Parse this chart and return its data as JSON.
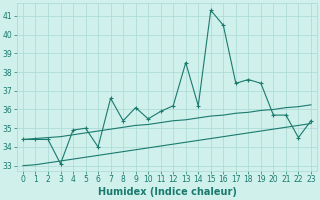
{
  "xlabel": "Humidex (Indice chaleur)",
  "x": [
    0,
    1,
    2,
    3,
    4,
    5,
    6,
    7,
    8,
    9,
    10,
    11,
    12,
    13,
    14,
    15,
    16,
    17,
    18,
    19,
    20,
    21,
    22,
    23
  ],
  "y_main": [
    34.4,
    34.4,
    34.4,
    33.1,
    34.9,
    35.0,
    34.0,
    36.6,
    35.4,
    36.1,
    35.5,
    35.9,
    36.2,
    38.5,
    36.2,
    41.3,
    40.5,
    37.4,
    37.6,
    37.4,
    35.7,
    35.7,
    34.5,
    35.4
  ],
  "y_upper": [
    34.4,
    34.45,
    34.5,
    34.55,
    34.65,
    34.75,
    34.85,
    34.95,
    35.05,
    35.15,
    35.2,
    35.3,
    35.4,
    35.45,
    35.55,
    35.65,
    35.7,
    35.8,
    35.85,
    35.95,
    36.0,
    36.1,
    36.15,
    36.25
  ],
  "y_lower": [
    33.0,
    33.05,
    33.15,
    33.25,
    33.35,
    33.45,
    33.55,
    33.65,
    33.75,
    33.85,
    33.95,
    34.05,
    34.15,
    34.25,
    34.35,
    34.45,
    34.55,
    34.65,
    34.75,
    34.85,
    34.95,
    35.05,
    35.15,
    35.25
  ],
  "line_color": "#1a7a6e",
  "bg_color": "#cff0eb",
  "grid_color": "#aad9d3",
  "ylim": [
    32.7,
    41.7
  ],
  "yticks": [
    33,
    34,
    35,
    36,
    37,
    38,
    39,
    40,
    41
  ],
  "xticks": [
    0,
    1,
    2,
    3,
    4,
    5,
    6,
    7,
    8,
    9,
    10,
    11,
    12,
    13,
    14,
    15,
    16,
    17,
    18,
    19,
    20,
    21,
    22,
    23
  ],
  "tick_fontsize": 5.5,
  "label_fontsize": 7
}
